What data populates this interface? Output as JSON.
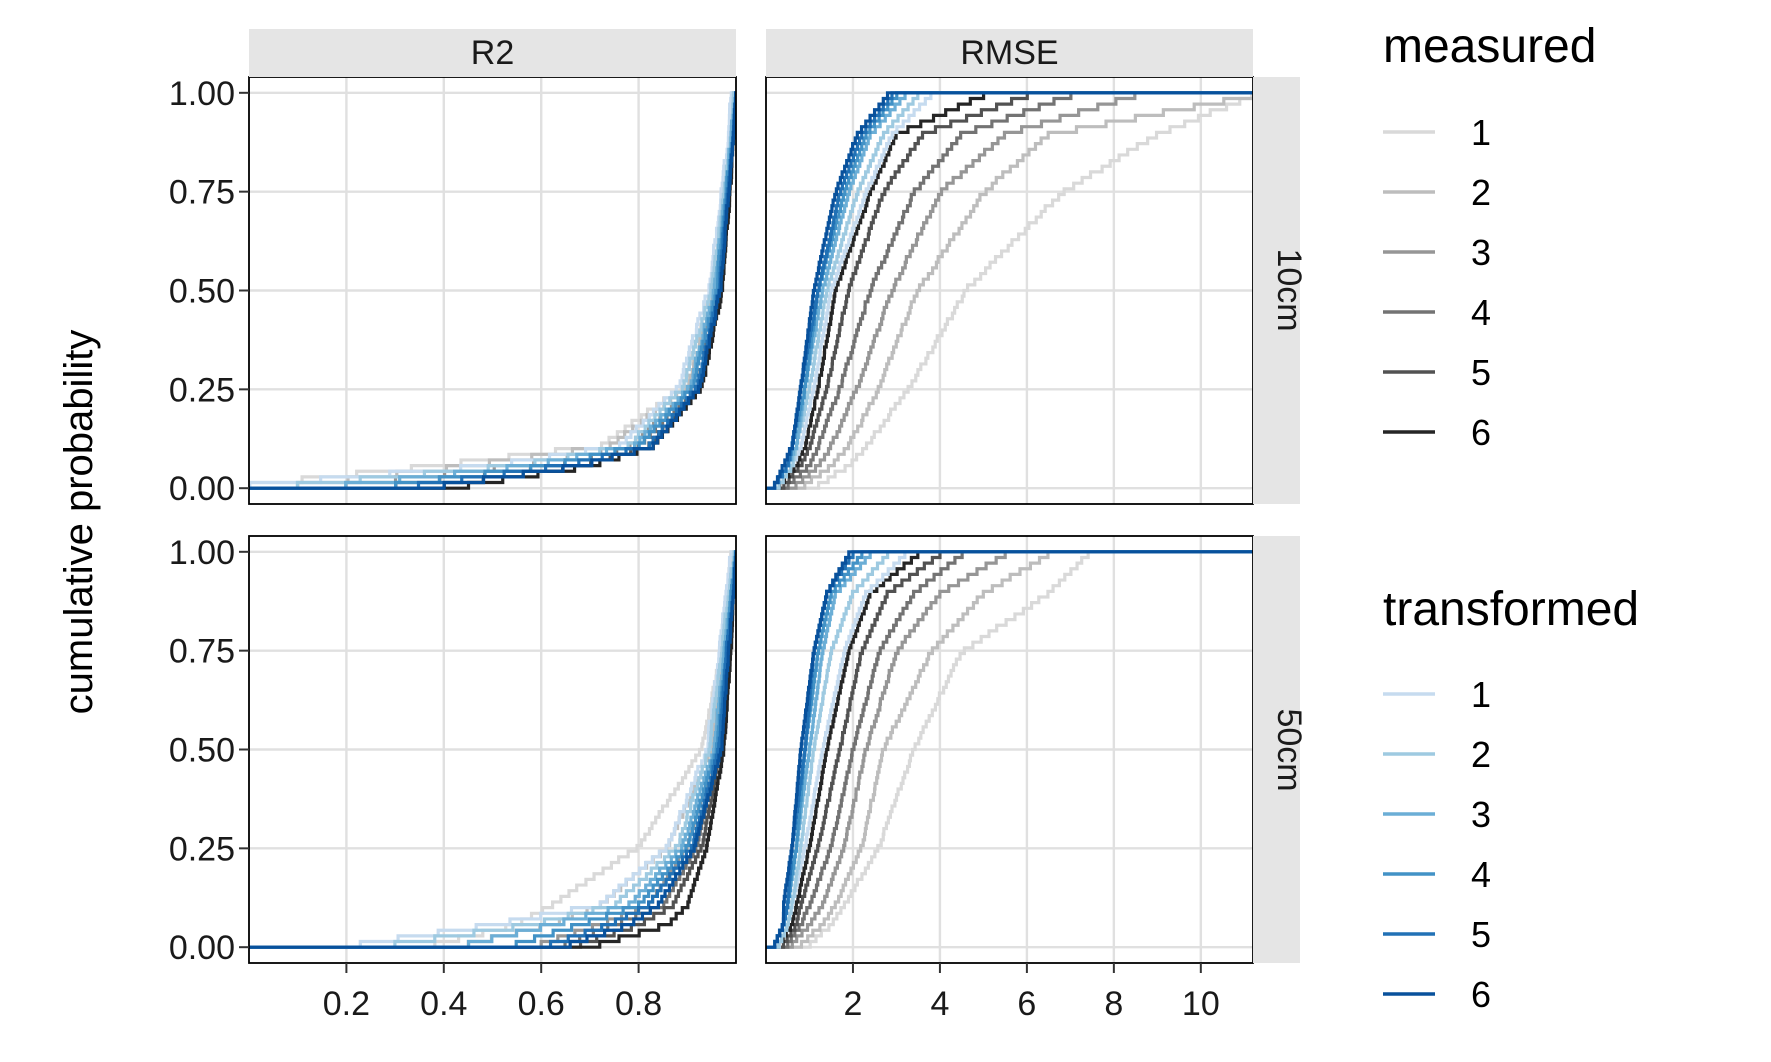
{
  "chart_data": {
    "type": "line",
    "subtype": "empirical cumulative distribution (step), faceted 2x2",
    "ylabel": "cumulative probability",
    "xlabel": "",
    "facets": {
      "columns": [
        "R2",
        "RMSE"
      ],
      "rows": [
        "10cm",
        "50cm"
      ]
    },
    "y_ticks": [
      "0.00",
      "0.25",
      "0.50",
      "0.75",
      "1.00"
    ],
    "ylim": [
      -0.04,
      1.04
    ],
    "x_axes": {
      "R2": {
        "xlim": [
          0.0,
          1.0
        ],
        "ticks": [
          "0.2",
          "0.4",
          "0.6",
          "0.8"
        ]
      },
      "RMSE": {
        "xlim": [
          0.0,
          11.2
        ],
        "ticks": [
          "2",
          "4",
          "6",
          "8",
          "10"
        ]
      }
    },
    "legends": [
      {
        "title": "measured",
        "labels": [
          "1",
          "2",
          "3",
          "4",
          "5",
          "6"
        ],
        "colors": [
          "#d9d9d9",
          "#bdbdbd",
          "#969696",
          "#737373",
          "#525252",
          "#252525"
        ]
      },
      {
        "title": "transformed",
        "labels": [
          "1",
          "2",
          "3",
          "4",
          "5",
          "6"
        ],
        "colors": [
          "#c6dbef",
          "#9ecae1",
          "#6baed6",
          "#4292c6",
          "#2171b5",
          "#08519c"
        ]
      }
    ],
    "series_shape": "ECDF curve y = F(x); approximate quantiles per series",
    "quantile_levels": [
      0,
      0.05,
      0.1,
      0.25,
      0.5,
      0.75,
      0.9,
      1.0
    ],
    "panels": [
      {
        "column": "R2",
        "row": "10cm",
        "measured": [
          [
            0.0,
            0.38,
            0.72,
            0.89,
            0.95,
            0.975,
            0.99,
            0.99
          ],
          [
            0.1,
            0.45,
            0.74,
            0.9,
            0.955,
            0.98,
            0.99,
            0.995
          ],
          [
            0.2,
            0.55,
            0.78,
            0.91,
            0.96,
            0.98,
            0.99,
            0.998
          ],
          [
            0.3,
            0.62,
            0.8,
            0.92,
            0.965,
            0.985,
            0.995,
            1.0
          ],
          [
            0.4,
            0.68,
            0.82,
            0.925,
            0.97,
            0.985,
            0.995,
            1.0
          ],
          [
            0.45,
            0.7,
            0.83,
            0.93,
            0.972,
            0.988,
            0.995,
            1.0
          ]
        ],
        "transformed": [
          [
            0.0,
            0.5,
            0.76,
            0.88,
            0.945,
            0.97,
            0.985,
            0.99
          ],
          [
            0.1,
            0.55,
            0.78,
            0.89,
            0.95,
            0.975,
            0.99,
            0.995
          ],
          [
            0.2,
            0.58,
            0.79,
            0.905,
            0.955,
            0.978,
            0.99,
            0.998
          ],
          [
            0.3,
            0.62,
            0.8,
            0.91,
            0.96,
            0.98,
            0.993,
            1.0
          ],
          [
            0.35,
            0.65,
            0.82,
            0.92,
            0.965,
            0.983,
            0.995,
            1.0
          ],
          [
            0.4,
            0.68,
            0.83,
            0.925,
            0.968,
            0.985,
            0.995,
            1.0
          ]
        ]
      },
      {
        "column": "R2",
        "row": "50cm",
        "measured": [
          [
            0.38,
            0.55,
            0.62,
            0.8,
            0.93,
            0.97,
            0.98,
            0.99
          ],
          [
            0.45,
            0.62,
            0.72,
            0.86,
            0.95,
            0.975,
            0.99,
            1.0
          ],
          [
            0.6,
            0.72,
            0.82,
            0.9,
            0.96,
            0.98,
            0.99,
            1.0
          ],
          [
            0.65,
            0.75,
            0.85,
            0.92,
            0.965,
            0.985,
            0.995,
            1.0
          ],
          [
            0.68,
            0.8,
            0.87,
            0.93,
            0.97,
            0.985,
            0.995,
            1.0
          ],
          [
            0.72,
            0.86,
            0.9,
            0.94,
            0.975,
            0.99,
            0.995,
            1.0
          ]
        ],
        "transformed": [
          [
            0.23,
            0.5,
            0.72,
            0.86,
            0.94,
            0.965,
            0.98,
            0.99
          ],
          [
            0.3,
            0.58,
            0.75,
            0.88,
            0.945,
            0.97,
            0.985,
            0.995
          ],
          [
            0.45,
            0.62,
            0.78,
            0.89,
            0.955,
            0.975,
            0.99,
            1.0
          ],
          [
            0.55,
            0.68,
            0.8,
            0.9,
            0.96,
            0.98,
            0.99,
            1.0
          ],
          [
            0.62,
            0.74,
            0.82,
            0.91,
            0.965,
            0.98,
            0.995,
            1.0
          ],
          [
            0.66,
            0.78,
            0.84,
            0.915,
            0.97,
            0.985,
            0.995,
            1.0
          ]
        ]
      },
      {
        "column": "RMSE",
        "row": "10cm",
        "measured": [
          [
            1.2,
            1.9,
            2.3,
            3.3,
            4.6,
            6.8,
            9.0,
            11.2
          ],
          [
            0.9,
            1.5,
            1.9,
            2.6,
            3.5,
            5.0,
            6.5,
            11.2
          ],
          [
            0.7,
            1.2,
            1.5,
            2.1,
            2.9,
            4.0,
            5.5,
            8.5
          ],
          [
            0.5,
            1.0,
            1.2,
            1.7,
            2.4,
            3.4,
            4.5,
            7.0
          ],
          [
            0.4,
            0.8,
            1.0,
            1.4,
            1.9,
            2.7,
            3.6,
            6.0
          ],
          [
            0.3,
            0.7,
            0.9,
            1.2,
            1.6,
            2.4,
            3.0,
            5.0
          ]
        ],
        "transformed": [
          [
            0.3,
            0.6,
            0.8,
            1.1,
            1.5,
            2.3,
            2.9,
            3.8
          ],
          [
            0.3,
            0.6,
            0.7,
            1.0,
            1.4,
            2.1,
            2.7,
            3.5
          ],
          [
            0.2,
            0.5,
            0.7,
            0.9,
            1.3,
            1.9,
            2.4,
            3.2
          ],
          [
            0.2,
            0.5,
            0.6,
            0.9,
            1.2,
            1.8,
            2.3,
            3.0
          ],
          [
            0.2,
            0.5,
            0.6,
            0.8,
            1.2,
            1.7,
            2.2,
            2.9
          ],
          [
            0.2,
            0.4,
            0.6,
            0.8,
            1.1,
            1.6,
            2.1,
            2.8
          ]
        ]
      },
      {
        "column": "RMSE",
        "row": "50cm",
        "measured": [
          [
            1.0,
            1.5,
            1.8,
            2.6,
            3.4,
            4.5,
            6.5,
            7.4
          ],
          [
            0.8,
            1.3,
            1.6,
            2.2,
            2.7,
            3.8,
            5.0,
            6.5
          ],
          [
            0.6,
            1.0,
            1.3,
            1.8,
            2.3,
            3.0,
            4.0,
            5.5
          ],
          [
            0.5,
            0.8,
            1.0,
            1.5,
            2.0,
            2.6,
            3.4,
            4.5
          ],
          [
            0.4,
            0.7,
            0.8,
            1.2,
            1.7,
            2.2,
            2.8,
            4.0
          ],
          [
            0.3,
            0.6,
            0.7,
            1.0,
            1.4,
            1.9,
            2.4,
            3.5
          ]
        ],
        "transformed": [
          [
            0.3,
            0.5,
            0.6,
            0.9,
            1.3,
            1.8,
            2.3,
            3.2
          ],
          [
            0.3,
            0.5,
            0.6,
            0.8,
            1.1,
            1.5,
            2.0,
            2.8
          ],
          [
            0.2,
            0.4,
            0.5,
            0.7,
            1.0,
            1.3,
            1.6,
            2.4
          ],
          [
            0.2,
            0.4,
            0.5,
            0.7,
            0.9,
            1.2,
            1.5,
            2.2
          ],
          [
            0.2,
            0.4,
            0.5,
            0.6,
            0.9,
            1.1,
            1.4,
            2.0
          ],
          [
            0.2,
            0.4,
            0.4,
            0.6,
            0.8,
            1.1,
            1.4,
            1.9
          ]
        ]
      }
    ]
  }
}
